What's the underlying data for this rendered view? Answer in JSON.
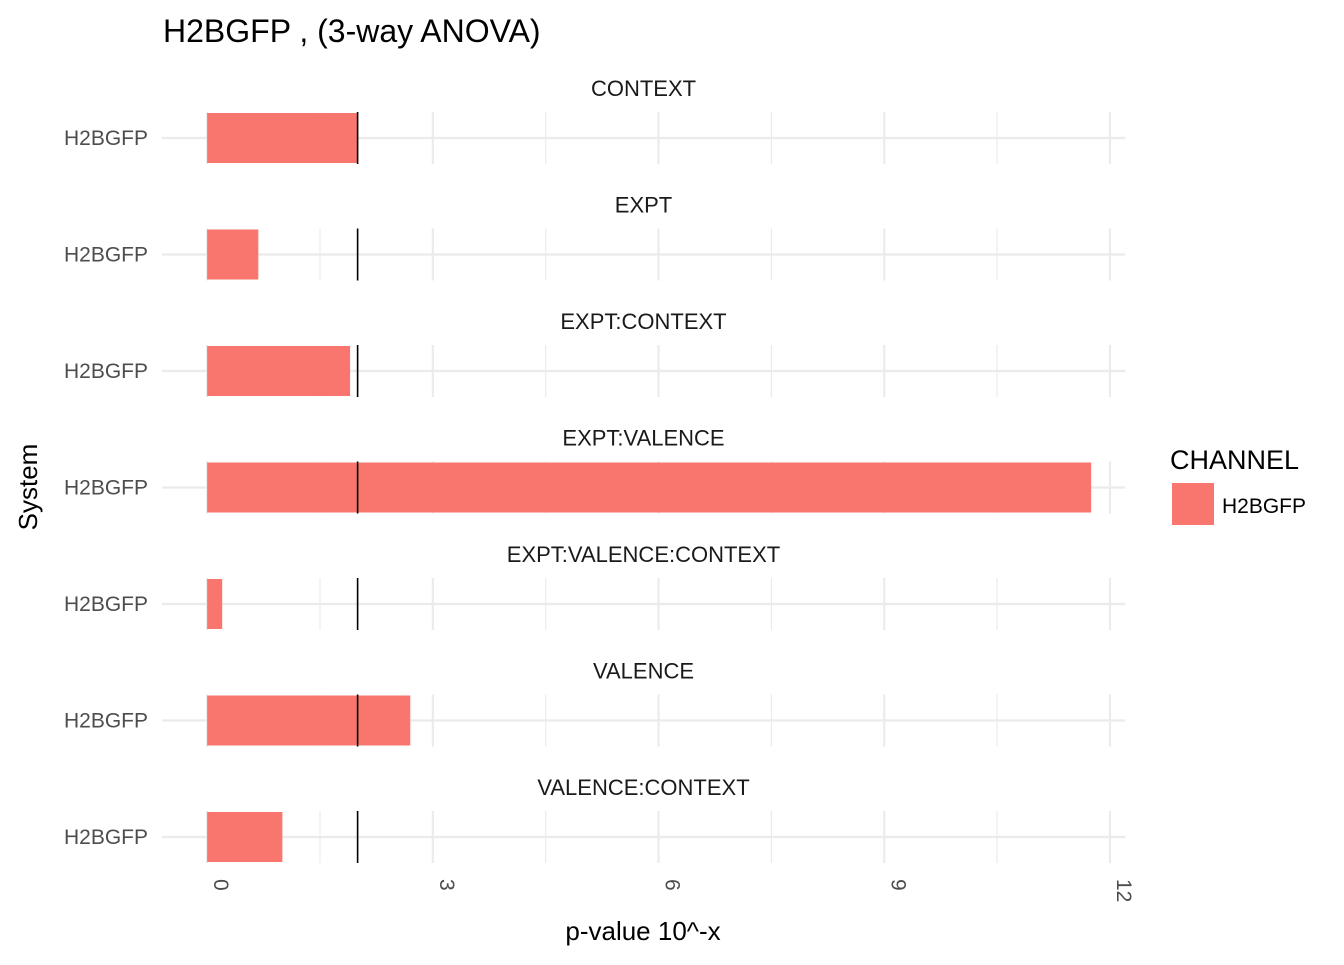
{
  "chart_data": {
    "type": "bar",
    "orientation": "horizontal",
    "title": "H2BGFP , (3-way ANOVA)",
    "xlabel": "p-value 10^-x",
    "ylabel": "System",
    "xlim": [
      -0.6,
      12.2
    ],
    "xticks": [
      "0",
      "3",
      "6",
      "9",
      "12"
    ],
    "xtick_values": [
      0,
      3,
      6,
      9,
      12
    ],
    "xtick_rotation": "vertical",
    "threshold_line": 2,
    "grid": true,
    "facets": [
      {
        "label": "CONTEXT",
        "category": "H2BGFP",
        "value": 2.0
      },
      {
        "label": "EXPT",
        "category": "H2BGFP",
        "value": 0.68
      },
      {
        "label": "EXPT:CONTEXT",
        "category": "H2BGFP",
        "value": 1.9
      },
      {
        "label": "EXPT:VALENCE",
        "category": "H2BGFP",
        "value": 11.75
      },
      {
        "label": "EXPT:VALENCE:CONTEXT",
        "category": "H2BGFP",
        "value": 0.2
      },
      {
        "label": "VALENCE",
        "category": "H2BGFP",
        "value": 2.7
      },
      {
        "label": "VALENCE:CONTEXT",
        "category": "H2BGFP",
        "value": 1.0
      }
    ],
    "series": [
      {
        "name": "H2BGFP",
        "color": "#F8766D"
      }
    ],
    "legend": {
      "title": "CHANNEL",
      "placement": "right"
    },
    "colors": {
      "bar": "#F8766D",
      "grid": "#ebebeb",
      "threshold": "#000000"
    }
  }
}
